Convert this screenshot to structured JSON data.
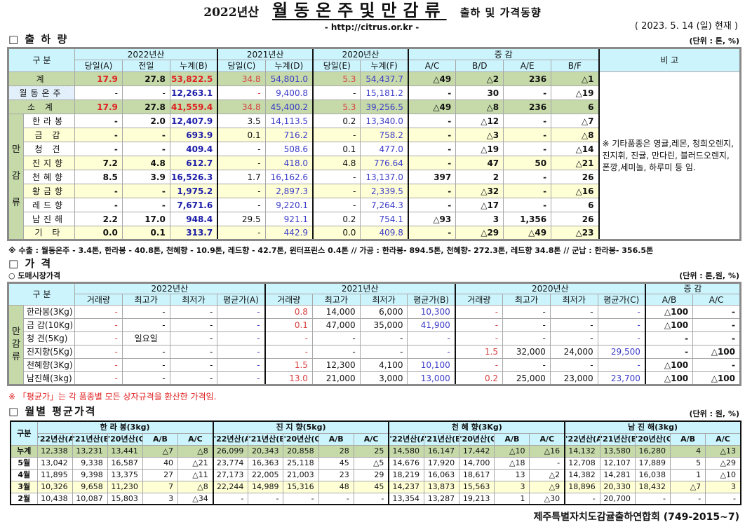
{
  "title": {
    "year": "2022년산",
    "main": "월동온주및만감류",
    "sub": "출하 및 가격동향"
  },
  "url": "- http://citrus.or.kr -",
  "date": "( 2023.  5.  14 (일) 현재 )",
  "shipments": {
    "heading": "□ 출 하 량",
    "unit": "(단위 : 톤, %)",
    "header": {
      "category": "구   분",
      "years": [
        "2022년산",
        "2021년산",
        "2020년산"
      ],
      "change": "증    감",
      "remarks": "비 고",
      "cols": [
        "당일(A)",
        "전일",
        "누계(B)",
        "당일(C)",
        "누계(D)",
        "당일(E)",
        "누계(F)",
        "A/C",
        "B/D",
        "A/E",
        "B/F"
      ]
    },
    "group_label": "만감류",
    "rows": [
      {
        "label": "계",
        "kind": "total",
        "cells": [
          "17.9",
          "27.8",
          "53,822.5",
          "34.8",
          "54,801.0",
          "5.3",
          "54,437.7",
          "△49",
          "△2",
          "236",
          "△1"
        ]
      },
      {
        "label": "월동온주",
        "kind": "winter",
        "cells": [
          "-",
          "-",
          "12,263.1",
          "-",
          "9,400.8",
          "-",
          "15,181.2",
          "-",
          "30",
          "-",
          "△19"
        ]
      },
      {
        "label": "소  계",
        "kind": "total",
        "cells": [
          "17.9",
          "27.8",
          "41,559.4",
          "34.8",
          "45,400.2",
          "5.3",
          "39,256.5",
          "△49",
          "△8",
          "236",
          "6"
        ]
      },
      {
        "label": "한라봉",
        "kind": "white",
        "cells": [
          "-",
          "2.0",
          "12,407.9",
          "3.5",
          "14,113.5",
          "0.2",
          "13,340.0",
          "-",
          "△12",
          "-",
          "△7"
        ]
      },
      {
        "label": "금    감",
        "kind": "yellow",
        "cells": [
          "-",
          "-",
          "693.9",
          "0.1",
          "716.2",
          "-",
          "758.2",
          "-",
          "△3",
          "-",
          "△8"
        ]
      },
      {
        "label": "청    견",
        "kind": "white",
        "cells": [
          "-",
          "-",
          "409.4",
          "-",
          "508.6",
          "0.1",
          "477.0",
          "-",
          "△19",
          "-",
          "△14"
        ]
      },
      {
        "label": "진지향",
        "kind": "yellow",
        "cells": [
          "7.2",
          "4.8",
          "612.7",
          "-",
          "418.0",
          "4.8",
          "776.64",
          "-",
          "47",
          "50",
          "△21"
        ]
      },
      {
        "label": "천혜향",
        "kind": "white",
        "cells": [
          "8.5",
          "3.9",
          "16,526.3",
          "1.7",
          "16,162.6",
          "-",
          "13,137.0",
          "397",
          "2",
          "-",
          "26"
        ]
      },
      {
        "label": "황금향",
        "kind": "yellow",
        "cells": [
          "-",
          "-",
          "1,975.2",
          "-",
          "2,897.3",
          "-",
          "2,339.5",
          "-",
          "△32",
          "-",
          "△16"
        ]
      },
      {
        "label": "레드향",
        "kind": "white",
        "cells": [
          "-",
          "-",
          "7,671.6",
          "-",
          "9,220.1",
          "-",
          "7,264.3",
          "-",
          "△17",
          "-",
          "6"
        ]
      },
      {
        "label": "남진해",
        "kind": "white",
        "cells": [
          "2.2",
          "17.0",
          "948.4",
          "29.5",
          "921.1",
          "0.2",
          "754.1",
          "△93",
          "3",
          "1,356",
          "26"
        ]
      },
      {
        "label": "기    타",
        "kind": "yellow",
        "cells": [
          "0.0",
          "0.1",
          "313.7",
          "-",
          "442.9",
          "0.0",
          "409.8",
          "-",
          "△29",
          "△49",
          "△23"
        ]
      }
    ],
    "remarks_note": "※ 기타품종은 영귤,레몬, 청희오렌지, 진지휘, 진귤, 만다린, 블러드오렌지, 폰깡,세미놀, 하루미 등 임.",
    "footnote": "※ 수출 : 월동온주 - 3.4톤, 한라봉 - 40.8톤, 천혜향 - 10.9톤, 레드향 - 42.7톤, 윈터프린스 0.4톤 //  가공  :  한라봉- 894.5톤, 천혜향- 272.3톤, 레드향 34.8톤  //  군납 : 한라봉- 356.5톤"
  },
  "prices": {
    "heading": "□ 가      격",
    "subheading": "○ 도매시장가격",
    "unit": "(단위 : 톤,원, %)",
    "header": {
      "category": "구    분",
      "years": [
        "2022년산",
        "2021년산",
        "2020년산"
      ],
      "change": "증    감",
      "cols": [
        "거래량",
        "최고가",
        "최저가",
        "평균가(A)",
        "거래량",
        "최고가",
        "최저가",
        "평균가(B)",
        "거래량",
        "최고가",
        "최저가",
        "평균가(C)",
        "A/B",
        "A/C"
      ]
    },
    "group_label": "만감류",
    "rows": [
      {
        "label": "한라봉(3Kg)",
        "cells": [
          "-",
          "-",
          "-",
          "-",
          "0.8",
          "14,000",
          "6,000",
          "10,300",
          "-",
          "-",
          "-",
          "-",
          "△100",
          "-"
        ]
      },
      {
        "label": "금 감(10Kg)",
        "cells": [
          "-",
          "-",
          "-",
          "-",
          "0.1",
          "47,000",
          "35,000",
          "41,900",
          "-",
          "-",
          "-",
          "-",
          "△100",
          "-"
        ]
      },
      {
        "label": "청   견(5Kg)",
        "cells": [
          "-",
          "일요일",
          "-",
          "-",
          "-",
          "-",
          "-",
          "-",
          "-",
          "-",
          "-",
          "-",
          "-",
          "-"
        ]
      },
      {
        "label": "진지향(5Kg)",
        "cells": [
          "-",
          "-",
          "-",
          "-",
          "-",
          "-",
          "-",
          "-",
          "1.5",
          "32,000",
          "24,000",
          "29,500",
          "-",
          "△100"
        ]
      },
      {
        "label": "천혜향(3Kg)",
        "cells": [
          "-",
          "-",
          "-",
          "-",
          "1.5",
          "12,300",
          "4,100",
          "10,100",
          "-",
          "-",
          "-",
          "-",
          "△100",
          "-"
        ]
      },
      {
        "label": "남진해(3kg)",
        "cells": [
          "-",
          "-",
          "-",
          "-",
          "13.0",
          "21,000",
          "3,000",
          "13,000",
          "0.2",
          "25,000",
          "23,000",
          "23,700",
          "△100",
          "△100"
        ]
      }
    ],
    "footnote": "※ 「평균가」는 각 품종별 모든 상자규격을 환산한 가격임."
  },
  "monthly": {
    "heading": "□ 월별 평균가격",
    "unit": "(단위 : 원, %)",
    "header": {
      "category": "구분",
      "groups": [
        "한 라 봉(3kg)",
        "진 지 향(5kg)",
        "천 혜 향(3Kg)",
        "남 진 해(3kg)"
      ],
      "cols": [
        "'22년산(A)",
        "'21년산(B)",
        "'20년산(C)",
        "A/B",
        "A/C"
      ]
    },
    "rows": [
      {
        "label": "누계",
        "kind": "cum",
        "cells": [
          "12,338",
          "13,231",
          "13,441",
          "△7",
          "△8",
          "26,099",
          "20,343",
          "20,858",
          "28",
          "25",
          "14,580",
          "16,147",
          "17,442",
          "△10",
          "△16",
          "14,132",
          "13,580",
          "16,280",
          "4",
          "△13"
        ]
      },
      {
        "label": "5월",
        "kind": "white",
        "cells": [
          "13,042",
          "9,338",
          "16,587",
          "40",
          "△21",
          "23,774",
          "16,363",
          "25,118",
          "45",
          "△5",
          "14,676",
          "17,920",
          "14,700",
          "△18",
          "-",
          "12,708",
          "12,107",
          "17,889",
          "5",
          "△29"
        ]
      },
      {
        "label": "4월",
        "kind": "white",
        "cells": [
          "11,895",
          "9,398",
          "13,375",
          "27",
          "△11",
          "27,173",
          "22,005",
          "21,003",
          "23",
          "29",
          "18,219",
          "16,063",
          "18,617",
          "13",
          "△2",
          "14,382",
          "14,281",
          "16,038",
          "1",
          "△10"
        ]
      },
      {
        "label": "3월",
        "kind": "yellow",
        "cells": [
          "10,326",
          "9,658",
          "11,230",
          "7",
          "△8",
          "22,244",
          "14,989",
          "15,316",
          "48",
          "45",
          "14,237",
          "13,873",
          "15,563",
          "3",
          "△9",
          "18,896",
          "20,330",
          "18,432",
          "△7",
          "3"
        ]
      },
      {
        "label": "2월",
        "kind": "white",
        "cells": [
          "10,438",
          "10,087",
          "15,803",
          "3",
          "△34",
          "-",
          "-",
          "-",
          "-",
          "-",
          "13,354",
          "13,287",
          "19,213",
          "1",
          "△30",
          "-",
          "20,700",
          "-",
          "-",
          "-"
        ]
      }
    ]
  },
  "footer": "제주특별자치도감귤출하연합회 (749-2015~7)"
}
